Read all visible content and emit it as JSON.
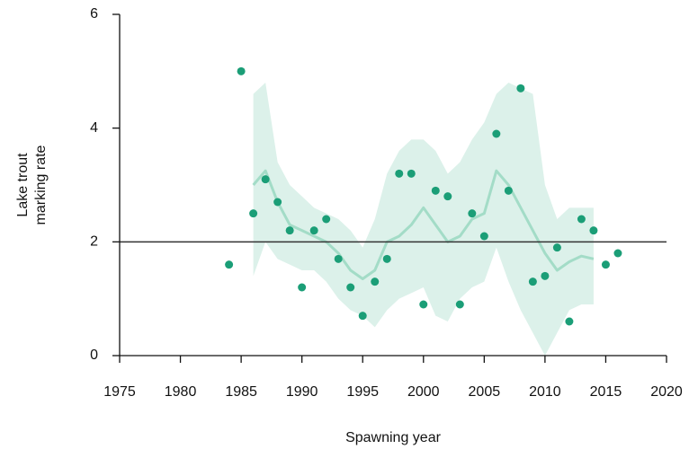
{
  "chart_data": {
    "type": "scatter",
    "xlabel": "Spawning year",
    "ylabel": [
      "Lake trout",
      "marking rate"
    ],
    "xlim": [
      1975,
      2020
    ],
    "ylim": [
      0,
      6
    ],
    "xticks": [
      1975,
      1980,
      1985,
      1990,
      1995,
      2000,
      2005,
      2010,
      2015,
      2020
    ],
    "yticks": [
      0,
      2,
      4,
      6
    ],
    "reference_line": 2,
    "reference_color": "#333333",
    "points": {
      "color": "#1b9e77",
      "x": [
        1984,
        1985,
        1986,
        1987,
        1988,
        1989,
        1990,
        1991,
        1992,
        1993,
        1994,
        1995,
        1996,
        1997,
        1998,
        1999,
        2000,
        2001,
        2002,
        2003,
        2004,
        2005,
        2006,
        2007,
        2008,
        2009,
        2010,
        2011,
        2012,
        2013,
        2014,
        2015,
        2016
      ],
      "values": [
        1.6,
        5.0,
        2.5,
        3.1,
        2.7,
        2.2,
        1.2,
        2.2,
        2.4,
        1.7,
        1.2,
        0.7,
        1.3,
        1.7,
        3.2,
        3.2,
        0.9,
        2.9,
        2.8,
        0.9,
        2.5,
        2.1,
        3.9,
        2.9,
        4.7,
        1.3,
        1.4,
        1.9,
        0.6,
        2.4,
        2.2,
        1.6,
        1.8
      ]
    },
    "smooth": {
      "color": "#a3dcc7",
      "band_color": "#dcf1ea",
      "x": [
        1986,
        1987,
        1988,
        1989,
        1990,
        1991,
        1992,
        1993,
        1994,
        1995,
        1996,
        1997,
        1998,
        1999,
        2000,
        2001,
        2002,
        2003,
        2004,
        2005,
        2006,
        2007,
        2008,
        2009,
        2010,
        2011,
        2012,
        2013,
        2014
      ],
      "values": [
        3.0,
        3.25,
        2.7,
        2.3,
        2.2,
        2.1,
        2.0,
        1.8,
        1.5,
        1.35,
        1.5,
        2.0,
        2.1,
        2.3,
        2.6,
        2.3,
        2.0,
        2.1,
        2.4,
        2.5,
        3.25,
        3.0,
        2.6,
        2.2,
        1.8,
        1.5,
        1.65,
        1.75,
        1.7
      ],
      "lower": [
        1.4,
        2.0,
        1.7,
        1.6,
        1.5,
        1.5,
        1.3,
        1.0,
        0.8,
        0.7,
        0.5,
        0.8,
        1.0,
        1.1,
        1.2,
        0.7,
        0.6,
        1.0,
        1.2,
        1.3,
        1.9,
        1.3,
        0.8,
        0.4,
        0.0,
        0.4,
        0.8,
        0.9,
        0.9
      ],
      "upper": [
        4.6,
        4.8,
        3.4,
        3.0,
        2.8,
        2.6,
        2.5,
        2.4,
        2.2,
        1.9,
        2.4,
        3.2,
        3.6,
        3.8,
        3.8,
        3.6,
        3.2,
        3.4,
        3.8,
        4.1,
        4.6,
        4.8,
        4.7,
        4.6,
        3.0,
        2.4,
        2.6,
        2.6,
        2.6
      ]
    }
  }
}
